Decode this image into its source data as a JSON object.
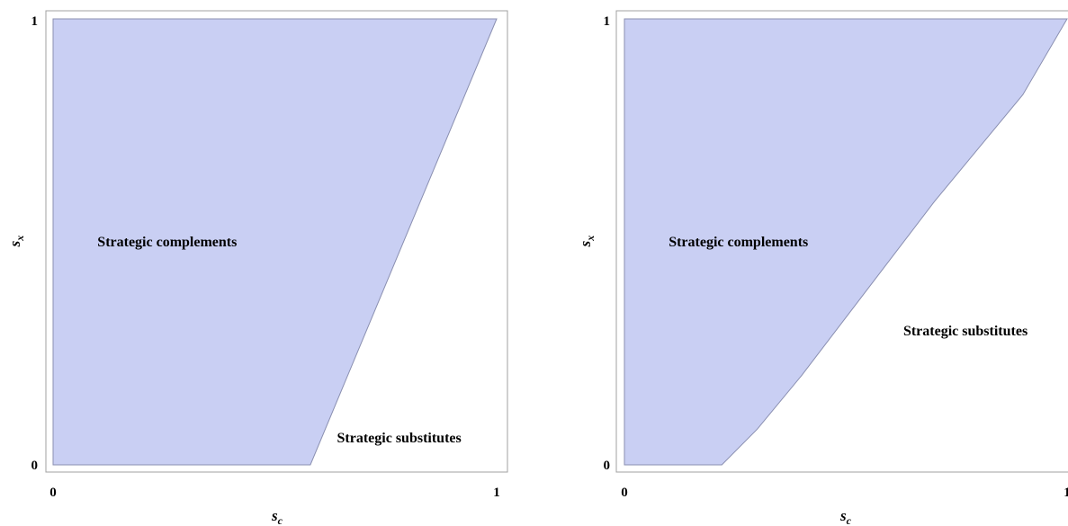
{
  "chart_data": [
    {
      "type": "area",
      "xlabel": "s",
      "xlabel_sub": "c",
      "ylabel": "s",
      "ylabel_sub": "x",
      "xlim": [
        0,
        1
      ],
      "ylim": [
        0,
        1
      ],
      "x_ticks": [
        "0",
        "1"
      ],
      "y_ticks": [
        "0",
        "1"
      ],
      "fill_color": "#c9cff3",
      "edge_color": "#8a8fb0",
      "region": {
        "boundary": [
          [
            0.58,
            0
          ],
          [
            1,
            1
          ]
        ]
      },
      "annotations": [
        {
          "text": "Strategic complements",
          "x": 0.1,
          "y": 0.5
        },
        {
          "text": "Strategic substitutes",
          "x": 0.64,
          "y": 0.06
        }
      ]
    },
    {
      "type": "area",
      "xlabel": "s",
      "xlabel_sub": "c",
      "ylabel": "s",
      "ylabel_sub": "x",
      "xlim": [
        0,
        1
      ],
      "ylim": [
        0,
        1
      ],
      "x_ticks": [
        "0",
        "1"
      ],
      "y_ticks": [
        "0",
        "1"
      ],
      "fill_color": "#c9cff3",
      "edge_color": "#8a8fb0",
      "region": {
        "boundary": [
          [
            0.22,
            0
          ],
          [
            0.3,
            0.08
          ],
          [
            0.4,
            0.2
          ],
          [
            0.5,
            0.33
          ],
          [
            0.6,
            0.46
          ],
          [
            0.7,
            0.59
          ],
          [
            0.8,
            0.71
          ],
          [
            0.9,
            0.83
          ],
          [
            1.0,
            1.0
          ]
        ]
      },
      "annotations": [
        {
          "text": "Strategic complements",
          "x": 0.1,
          "y": 0.5
        },
        {
          "text": "Strategic substitutes",
          "x": 0.63,
          "y": 0.3
        }
      ]
    }
  ]
}
